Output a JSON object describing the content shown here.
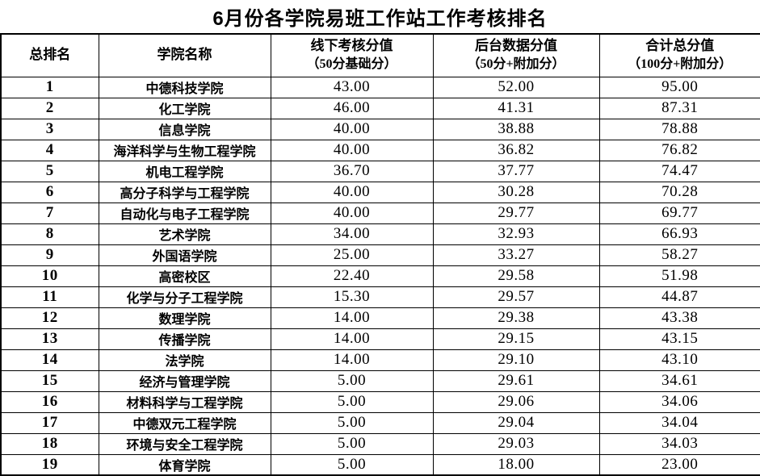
{
  "title": "6月份各学院易班工作站工作考核排名",
  "table": {
    "headers": [
      {
        "line1": "总排名",
        "line2": ""
      },
      {
        "line1": "学院名称",
        "line2": ""
      },
      {
        "line1": "线下考核分值",
        "line2": "（50分基础分）"
      },
      {
        "line1": "后台数据分值",
        "line2": "（50分+附加分）"
      },
      {
        "line1": "合计总分值",
        "line2": "（100分+附加分）"
      }
    ],
    "rows": [
      {
        "rank": "1",
        "college": "中德科技学院",
        "offline_score": "43.00",
        "backend_score": "52.00",
        "total_score": "95.00"
      },
      {
        "rank": "2",
        "college": "化工学院",
        "offline_score": "46.00",
        "backend_score": "41.31",
        "total_score": "87.31"
      },
      {
        "rank": "3",
        "college": "信息学院",
        "offline_score": "40.00",
        "backend_score": "38.88",
        "total_score": "78.88"
      },
      {
        "rank": "4",
        "college": "海洋科学与生物工程学院",
        "offline_score": "40.00",
        "backend_score": "36.82",
        "total_score": "76.82"
      },
      {
        "rank": "5",
        "college": "机电工程学院",
        "offline_score": "36.70",
        "backend_score": "37.77",
        "total_score": "74.47"
      },
      {
        "rank": "6",
        "college": "高分子科学与工程学院",
        "offline_score": "40.00",
        "backend_score": "30.28",
        "total_score": "70.28"
      },
      {
        "rank": "7",
        "college": "自动化与电子工程学院",
        "offline_score": "40.00",
        "backend_score": "29.77",
        "total_score": "69.77"
      },
      {
        "rank": "8",
        "college": "艺术学院",
        "offline_score": "34.00",
        "backend_score": "32.93",
        "total_score": "66.93"
      },
      {
        "rank": "9",
        "college": "外国语学院",
        "offline_score": "25.00",
        "backend_score": "33.27",
        "total_score": "58.27"
      },
      {
        "rank": "10",
        "college": "高密校区",
        "offline_score": "22.40",
        "backend_score": "29.58",
        "total_score": "51.98"
      },
      {
        "rank": "11",
        "college": "化学与分子工程学院",
        "offline_score": "15.30",
        "backend_score": "29.57",
        "total_score": "44.87"
      },
      {
        "rank": "12",
        "college": "数理学院",
        "offline_score": "14.00",
        "backend_score": "29.38",
        "total_score": "43.38"
      },
      {
        "rank": "13",
        "college": "传播学院",
        "offline_score": "14.00",
        "backend_score": "29.15",
        "total_score": "43.15"
      },
      {
        "rank": "14",
        "college": "法学院",
        "offline_score": "14.00",
        "backend_score": "29.10",
        "total_score": "43.10"
      },
      {
        "rank": "15",
        "college": "经济与管理学院",
        "offline_score": "5.00",
        "backend_score": "29.61",
        "total_score": "34.61"
      },
      {
        "rank": "16",
        "college": "材料科学与工程学院",
        "offline_score": "5.00",
        "backend_score": "29.06",
        "total_score": "34.06"
      },
      {
        "rank": "17",
        "college": "中德双元工程学院",
        "offline_score": "5.00",
        "backend_score": "29.04",
        "total_score": "34.04"
      },
      {
        "rank": "18",
        "college": "环境与安全工程学院",
        "offline_score": "5.00",
        "backend_score": "29.03",
        "total_score": "34.03"
      },
      {
        "rank": "19",
        "college": "体育学院",
        "offline_score": "5.00",
        "backend_score": "18.00",
        "total_score": "23.00"
      }
    ]
  }
}
